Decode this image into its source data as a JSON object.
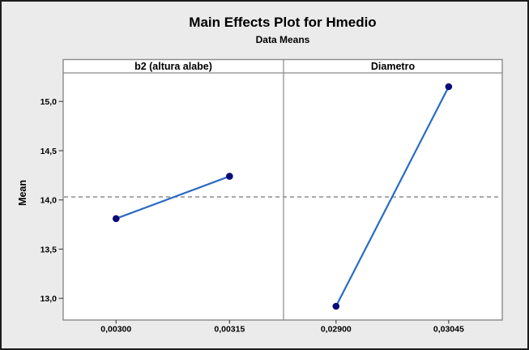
{
  "window": {
    "background_color": "#ECEBEB",
    "border_color": "#1c1c1c"
  },
  "chart_data": {
    "type": "line",
    "title": "Main Effects Plot for Hmedio",
    "subtitle": "Data Means",
    "ylabel": "Mean",
    "ylim": [
      12.78,
      15.29
    ],
    "yticks": [
      13.0,
      13.5,
      14.0,
      14.5,
      15.0
    ],
    "ytick_labels": [
      "13,0",
      "13,5",
      "14,0",
      "14,5",
      "15,0"
    ],
    "grid": false,
    "legend": "none",
    "reference_line": {
      "value": 14.03,
      "style": "dashed",
      "color": "#969696"
    },
    "panels": [
      {
        "label": "b2 (altura alabe)",
        "categories": [
          "0,00300",
          "0,00315"
        ],
        "values": [
          13.81,
          14.24
        ]
      },
      {
        "label": "Diametro",
        "categories": [
          "0,02900",
          "0,03045"
        ],
        "values": [
          12.92,
          15.15
        ]
      }
    ],
    "series_style": {
      "line_color": "#2a6bc4",
      "marker_color": "#0b0b78"
    },
    "panel_fill": "#ffffff",
    "panel_border_color": "#8a8a8a",
    "tick_color": "#4d4d4d",
    "text_color": "#000000"
  }
}
